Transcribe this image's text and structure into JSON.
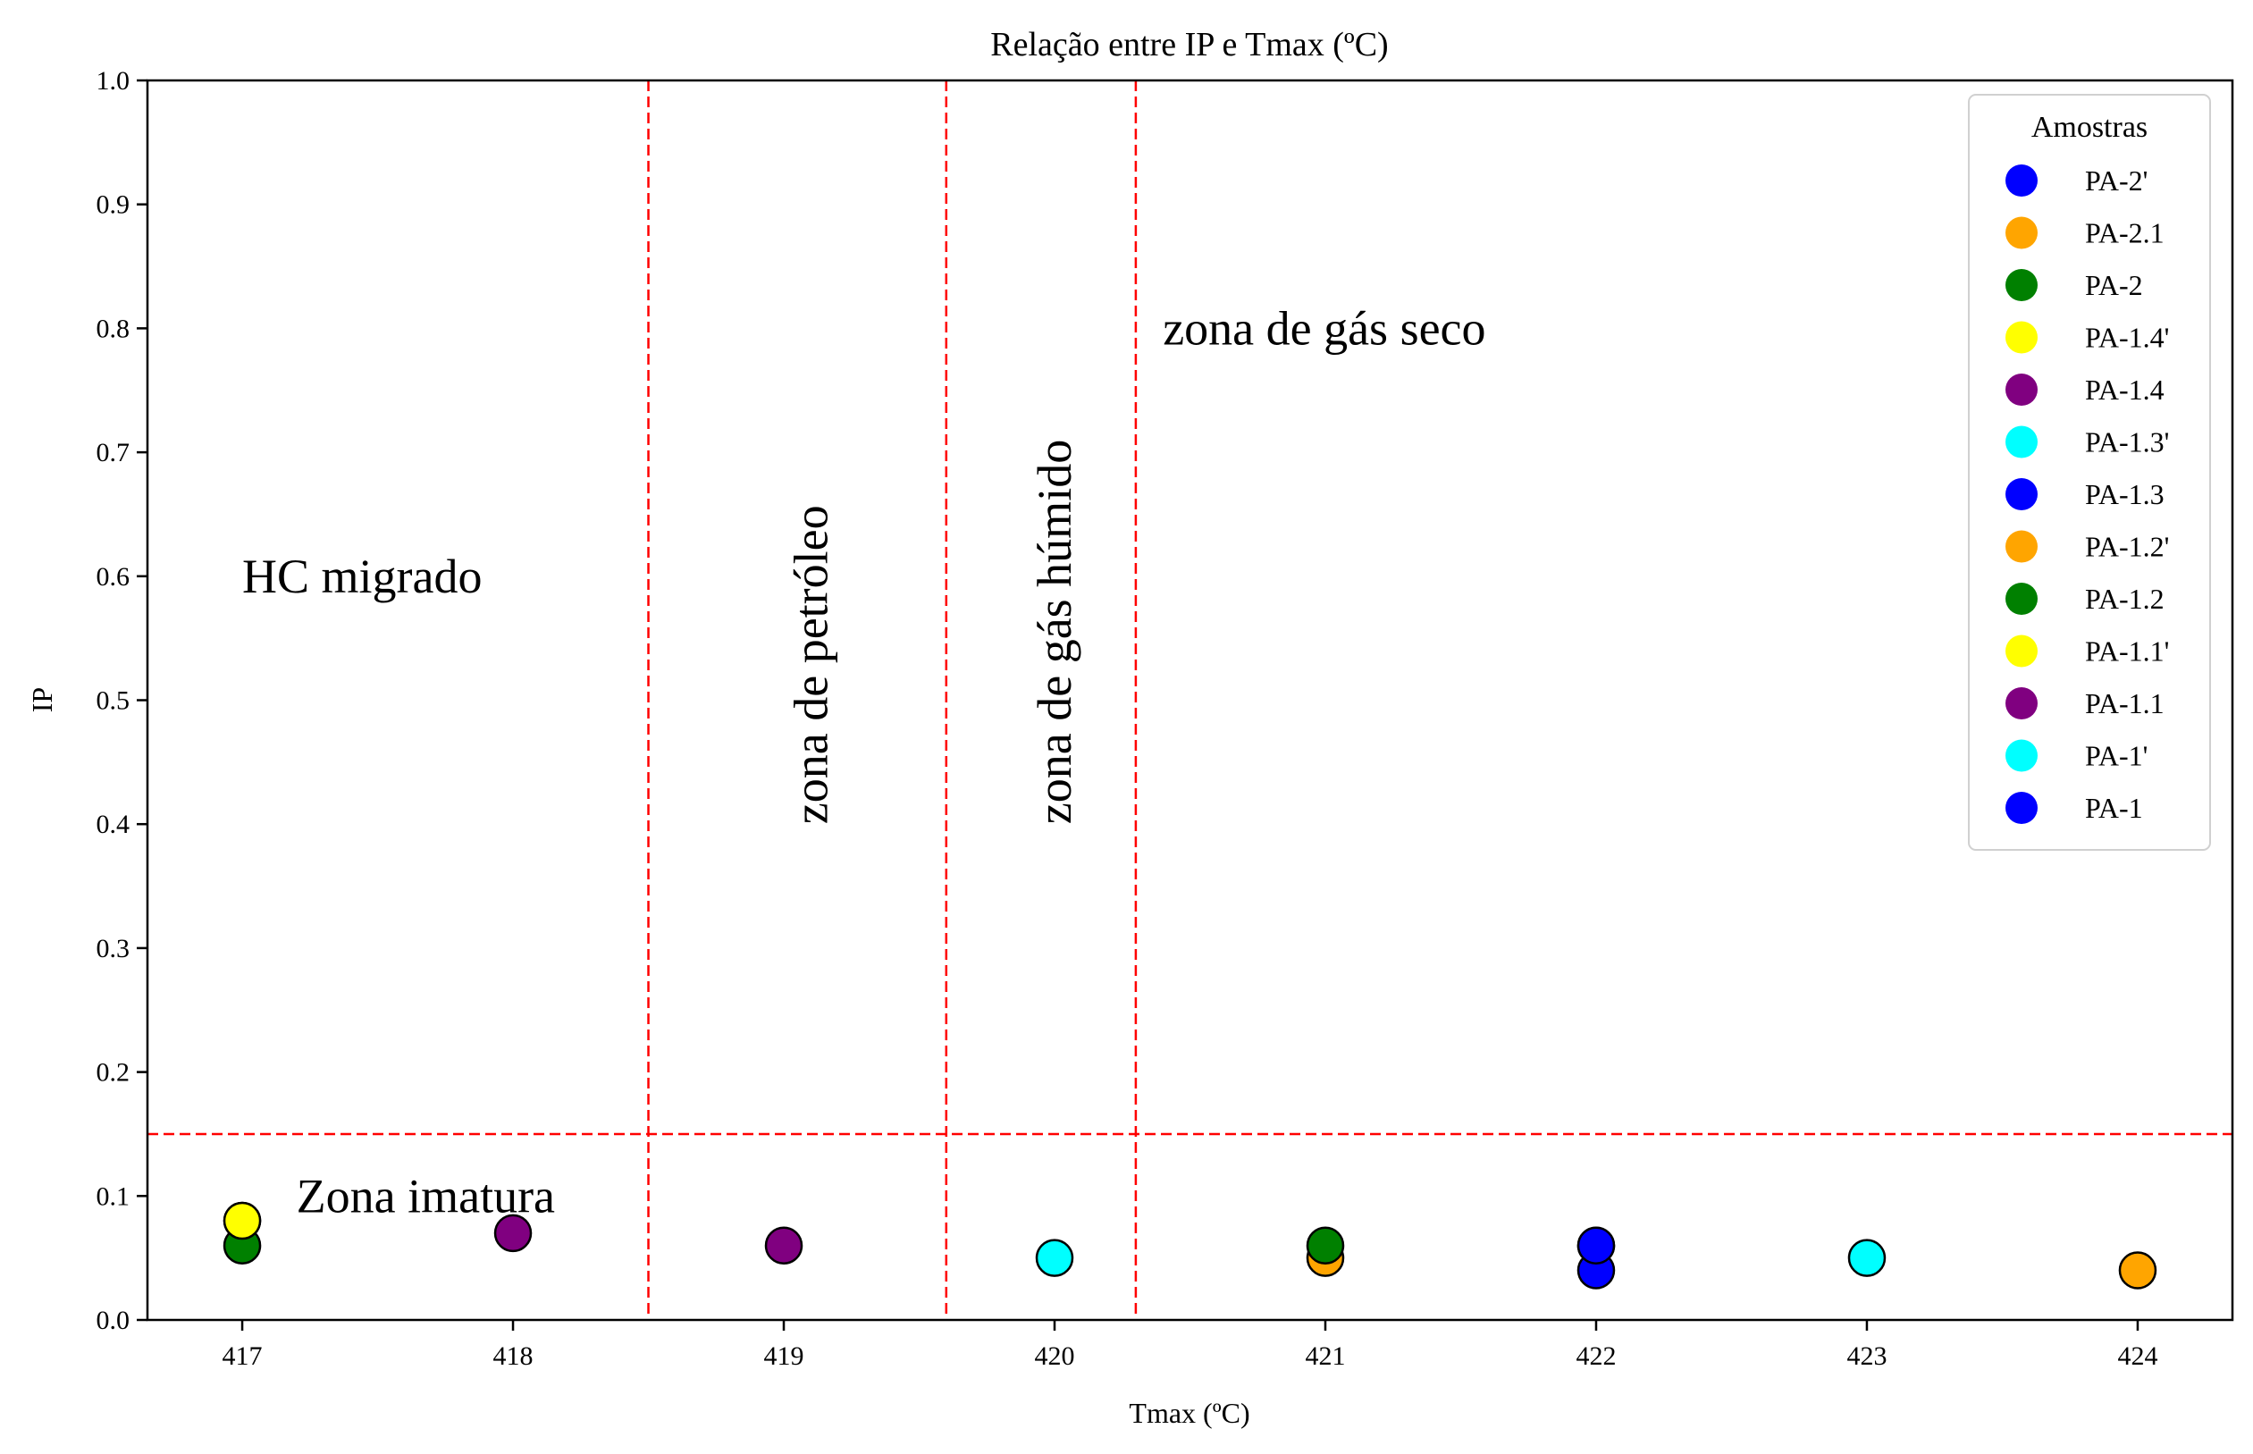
{
  "chart_data": {
    "type": "scatter",
    "title": "Relação entre IP e Tmax (ºC)",
    "xlabel": "Tmax (ºC)",
    "ylabel": "IP",
    "xlim": [
      416.65,
      424.35
    ],
    "ylim": [
      0.0,
      1.0
    ],
    "x_ticks": [
      417,
      418,
      419,
      420,
      421,
      422,
      423,
      424
    ],
    "y_ticks": [
      0.0,
      0.1,
      0.2,
      0.3,
      0.4,
      0.5,
      0.6,
      0.7,
      0.8,
      0.9,
      1.0
    ],
    "grid": false,
    "legend": {
      "title": "Amostras",
      "position": "top-right"
    },
    "reference_lines": [
      {
        "orientation": "vertical",
        "x": 418.5,
        "color": "#ff0000",
        "style": "dashed"
      },
      {
        "orientation": "vertical",
        "x": 419.6,
        "color": "#ff0000",
        "style": "dashed"
      },
      {
        "orientation": "vertical",
        "x": 420.3,
        "color": "#ff0000",
        "style": "dashed"
      },
      {
        "orientation": "horizontal",
        "y": 0.15,
        "color": "#ff0000",
        "style": "dashed"
      }
    ],
    "annotations": [
      {
        "text": "HC migrado",
        "x": 417.0,
        "y": 0.6,
        "rotation": 0
      },
      {
        "text": "Zona imatura",
        "x": 417.2,
        "y": 0.1,
        "rotation": 0
      },
      {
        "text": "zona de petróleo",
        "x": 419.1,
        "y": 0.4,
        "rotation": 90
      },
      {
        "text": "zona de gás húmido",
        "x": 420.0,
        "y": 0.4,
        "rotation": 90
      },
      {
        "text": "zona de gás seco",
        "x": 420.4,
        "y": 0.8,
        "rotation": 0
      }
    ],
    "series": [
      {
        "name": "PA-2'",
        "color": "#0000ff",
        "points": [
          [
            422,
            0.06
          ]
        ]
      },
      {
        "name": "PA-2.1",
        "color": "#ffa500",
        "points": [
          [
            421,
            0.05
          ]
        ]
      },
      {
        "name": "PA-2",
        "color": "#008000",
        "points": [
          [
            421,
            0.06
          ]
        ]
      },
      {
        "name": "PA-1.4'",
        "color": "#ffff00",
        "points": [
          [
            417,
            0.08
          ]
        ]
      },
      {
        "name": "PA-1.4",
        "color": "#800080",
        "points": [
          [
            418,
            0.07
          ]
        ]
      },
      {
        "name": "PA-1.3'",
        "color": "#00ffff",
        "points": [
          [
            423,
            0.05
          ]
        ]
      },
      {
        "name": "PA-1.3",
        "color": "#0000ff",
        "points": [
          [
            422,
            0.04
          ]
        ]
      },
      {
        "name": "PA-1.2'",
        "color": "#ffa500",
        "points": [
          [
            424,
            0.04
          ]
        ]
      },
      {
        "name": "PA-1.2",
        "color": "#008000",
        "points": [
          [
            417,
            0.06
          ]
        ]
      },
      {
        "name": "PA-1.1'",
        "color": "#ffff00",
        "points": [
          [
            417,
            0.08
          ]
        ]
      },
      {
        "name": "PA-1.1",
        "color": "#800080",
        "points": [
          [
            419,
            0.06
          ]
        ]
      },
      {
        "name": "PA-1'",
        "color": "#00ffff",
        "points": [
          [
            420,
            0.05
          ]
        ]
      },
      {
        "name": "PA-1",
        "color": "#0000ff",
        "points": [
          [
            422,
            0.06
          ]
        ]
      }
    ]
  }
}
